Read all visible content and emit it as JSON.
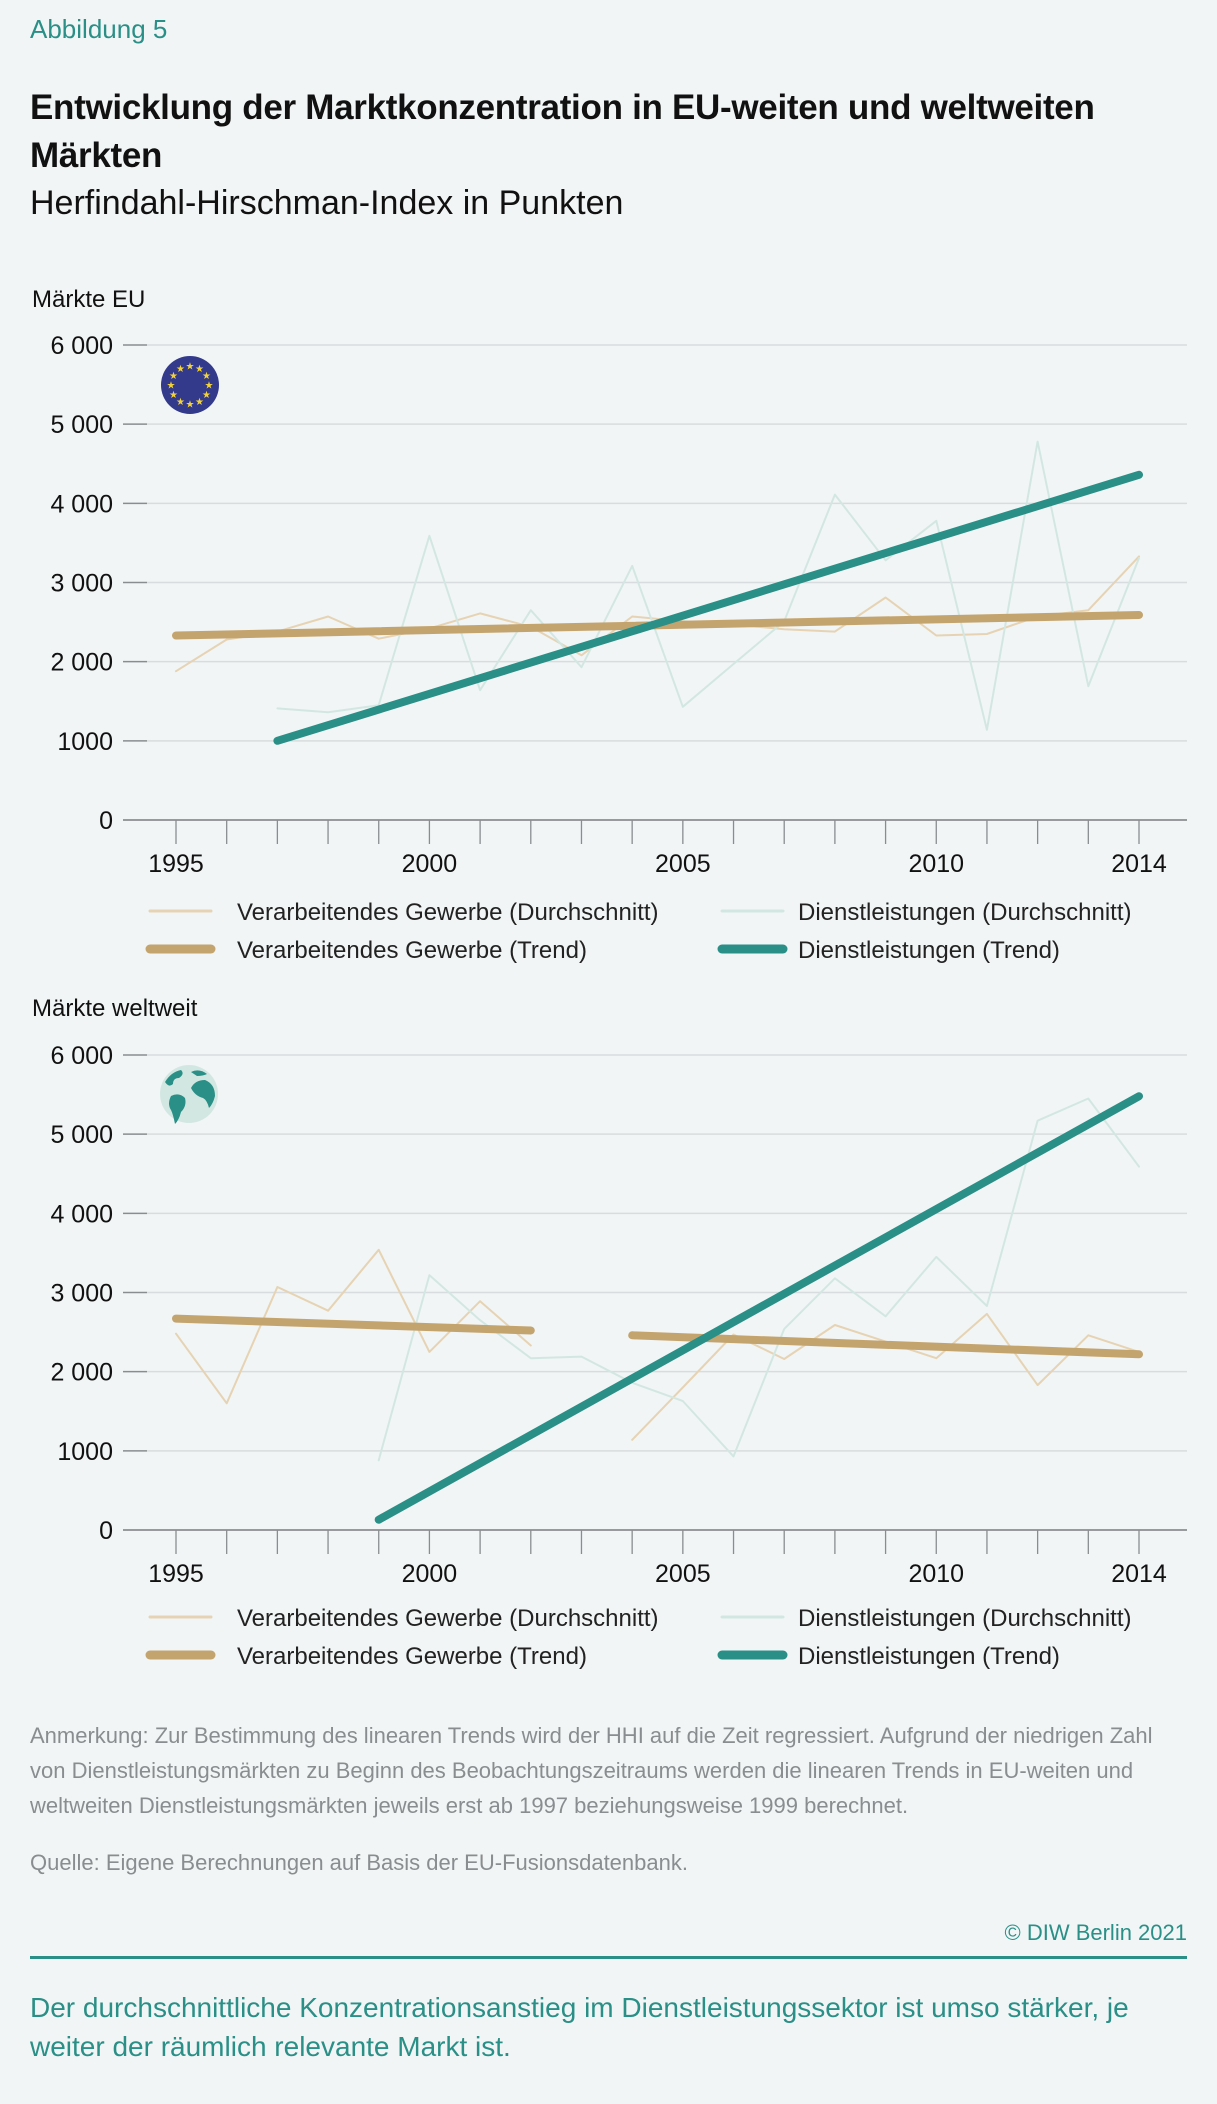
{
  "figure_label": "Abbildung 5",
  "title": "Entwicklung der Marktkonzentration in EU-weiten und weltweiten Märkten",
  "subtitle": "Herfindahl-Hirschman-Index in Punkten",
  "colors": {
    "manufacturing_avg": "#e6d3b3",
    "manufacturing_trend": "#c4a46e",
    "services_avg": "#d3e7e2",
    "services_trend": "#2a8f86",
    "accent": "#2a8f86",
    "gridline": "#d9dcde",
    "axis": "#7a7d80",
    "eu_flag_blue": "#333a8c",
    "eu_flag_star": "#f2d23a",
    "globe_sea": "#d3e7e2",
    "globe_land": "#2a8f86"
  },
  "legend": [
    {
      "label": "Verarbeitendes Gewerbe (Durchschnitt)",
      "series": "manufacturing_avg"
    },
    {
      "label": "Dienstleistungen (Durchschnitt)",
      "series": "services_avg"
    },
    {
      "label": "Verarbeitendes Gewerbe (Trend)",
      "series": "manufacturing_trend"
    },
    {
      "label": "Dienstleistungen (Trend)",
      "series": "services_trend"
    }
  ],
  "chart_data": [
    {
      "type": "line",
      "title": "Märkte EU",
      "icon": "eu-flag-icon",
      "xlabel": "",
      "ylabel": "",
      "x": [
        1995,
        1996,
        1997,
        1998,
        1999,
        2000,
        2001,
        2002,
        2003,
        2004,
        2005,
        2006,
        2007,
        2008,
        2009,
        2010,
        2011,
        2012,
        2013,
        2014
      ],
      "xlim": [
        1995,
        2014
      ],
      "xticks_labeled": [
        "1995",
        "2000",
        "2005",
        "2010",
        "2014"
      ],
      "ylim": [
        0,
        6000
      ],
      "yticks": [
        0,
        1000,
        2000,
        3000,
        4000,
        5000,
        6000
      ],
      "ytick_labels": [
        "0",
        "1000",
        "2 000",
        "3 000",
        "4 000",
        "5 000",
        "6 000"
      ],
      "grid": true,
      "legend_position": "bottom",
      "series": [
        {
          "key": "manufacturing_avg",
          "name": "Verarbeitendes Gewerbe (Durchschnitt)",
          "x": [
            1995,
            1996,
            1997,
            1998,
            1999,
            2000,
            2001,
            2002,
            2003,
            2004,
            2005,
            2006,
            2007,
            2008,
            2009,
            2010,
            2011,
            2012,
            2013,
            2014
          ],
          "values": [
            1880,
            2280,
            2380,
            2570,
            2290,
            2420,
            2610,
            2440,
            2080,
            2570,
            2510,
            2470,
            2410,
            2380,
            2810,
            2330,
            2350,
            2570,
            2650,
            3330
          ]
        },
        {
          "key": "services_avg",
          "name": "Dienstleistungen (Durchschnitt)",
          "x": [
            1997,
            1998,
            1999,
            2000,
            2001,
            2002,
            2003,
            2004,
            2005,
            2006,
            2007,
            2008,
            2009,
            2010,
            2011,
            2012,
            2013,
            2014
          ],
          "values": [
            1410,
            1360,
            1450,
            3590,
            1640,
            2650,
            1930,
            3210,
            1430,
            1970,
            2510,
            4110,
            3280,
            3780,
            1140,
            4780,
            1690,
            3310
          ]
        },
        {
          "key": "manufacturing_trend",
          "name": "Verarbeitendes Gewerbe (Trend)",
          "x": [
            1995,
            2014
          ],
          "values": [
            2330,
            2590
          ]
        },
        {
          "key": "services_trend",
          "name": "Dienstleistungen (Trend)",
          "x": [
            1997,
            2014
          ],
          "values": [
            1000,
            4360
          ]
        }
      ]
    },
    {
      "type": "line",
      "title": "Märkte weltweit",
      "icon": "globe-icon",
      "xlabel": "",
      "ylabel": "",
      "x": [
        1995,
        1996,
        1997,
        1998,
        1999,
        2000,
        2001,
        2002,
        2003,
        2004,
        2005,
        2006,
        2007,
        2008,
        2009,
        2010,
        2011,
        2012,
        2013,
        2014
      ],
      "xlim": [
        1995,
        2014
      ],
      "xticks_labeled": [
        "1995",
        "2000",
        "2005",
        "2010",
        "2014"
      ],
      "ylim": [
        0,
        6000
      ],
      "yticks": [
        0,
        1000,
        2000,
        3000,
        4000,
        5000,
        6000
      ],
      "ytick_labels": [
        "0",
        "1000",
        "2 000",
        "3 000",
        "4 000",
        "5 000",
        "6 000"
      ],
      "grid": true,
      "legend_position": "bottom",
      "series": [
        {
          "key": "manufacturing_avg",
          "name": "Verarbeitendes Gewerbe (Durchschnitt)",
          "segments": [
            {
              "x": [
                1995,
                1996,
                1997,
                1998,
                1999,
                2000,
                2001,
                2002
              ],
              "values": [
                2480,
                1600,
                3070,
                2770,
                3540,
                2250,
                2890,
                2330
              ]
            },
            {
              "x": [
                2004,
                2005,
                2006,
                2007,
                2008,
                2009,
                2010,
                2011,
                2012,
                2013,
                2014
              ],
              "values": [
                1140,
                1800,
                2470,
                2160,
                2590,
                2380,
                2170,
                2730,
                1830,
                2460,
                2250
              ]
            }
          ]
        },
        {
          "key": "services_avg",
          "name": "Dienstleistungen (Durchschnitt)",
          "segments": [
            {
              "x": [
                1999,
                2000,
                2001,
                2002,
                2003,
                2004,
                2005,
                2006,
                2007,
                2008,
                2009,
                2010,
                2011,
                2012,
                2013,
                2014
              ],
              "values": [
                880,
                3220,
                2650,
                2170,
                2190,
                1860,
                1630,
                930,
                2540,
                3180,
                2700,
                3450,
                2830,
                5170,
                5450,
                4590
              ]
            }
          ]
        },
        {
          "key": "manufacturing_trend",
          "name": "Verarbeitendes Gewerbe (Trend)",
          "segments": [
            {
              "x": [
                1995,
                2002
              ],
              "values": [
                2670,
                2520
              ]
            },
            {
              "x": [
                2004,
                2014
              ],
              "values": [
                2460,
                2220
              ]
            }
          ]
        },
        {
          "key": "services_trend",
          "name": "Dienstleistungen (Trend)",
          "segments": [
            {
              "x": [
                1999,
                2014
              ],
              "values": [
                130,
                5480
              ]
            }
          ]
        }
      ]
    }
  ],
  "note": "Anmerkung: Zur Bestimmung des linearen Trends wird der HHI auf die Zeit regressiert. Aufgrund der niedrigen Zahl von Dienstleistungsmärkten zu Beginn des Beobachtungszeitraums werden die linearen Trends in EU-weiten und weltweiten Dienstleistungsmärkten jeweils erst ab 1997 beziehungsweise 1999 berechnet.",
  "source": "Quelle: Eigene Berechnungen auf Basis der EU-Fusionsdatenbank.",
  "copyright": "© DIW Berlin 2021",
  "key_finding": "Der durchschnittliche Konzentrationsanstieg im Dienstleistungssektor ist umso stärker, je weiter der räumlich relevante Markt ist."
}
